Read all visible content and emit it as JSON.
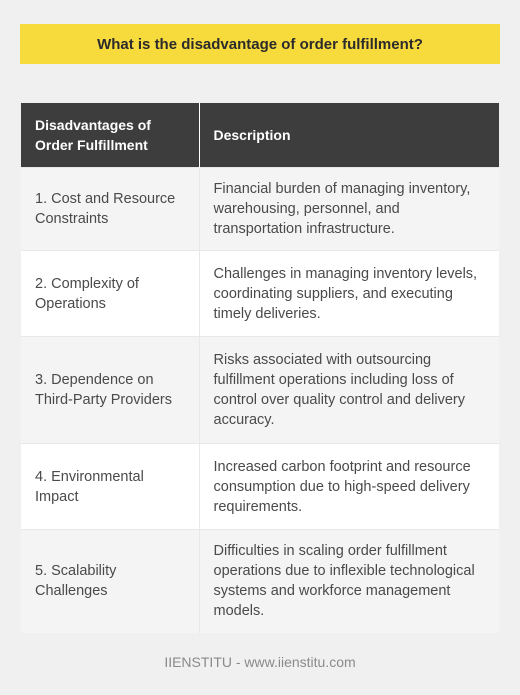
{
  "title": "What is the disadvantage of order fulfillment?",
  "table": {
    "headers": [
      "Disadvantages of Order Fulfillment",
      "Description"
    ],
    "rows": [
      [
        "1. Cost and Resource Constraints",
        "Financial burden of managing inventory, warehousing, personnel, and transportation infrastructure."
      ],
      [
        "2. Complexity of Operations",
        "Challenges in managing inventory levels, coordinating suppliers, and executing timely deliveries."
      ],
      [
        "3. Dependence on Third-Party Providers",
        "Risks associated with outsourcing fulfillment operations including loss of control over quality control and delivery accuracy."
      ],
      [
        "4. Environmental Impact",
        "Increased carbon footprint and resource consumption due to high-speed delivery requirements."
      ],
      [
        "5. Scalability Challenges",
        "Difficulties in scaling order fulfillment operations due to inflexible technological systems and workforce management models."
      ]
    ]
  },
  "footer": "IIENSTITU - www.iienstitu.com",
  "colors": {
    "title_bg": "#f7da3c",
    "header_bg": "#3d3d3d",
    "row_alt_bg": "#f4f4f4",
    "page_bg": "#f0f0f0"
  }
}
